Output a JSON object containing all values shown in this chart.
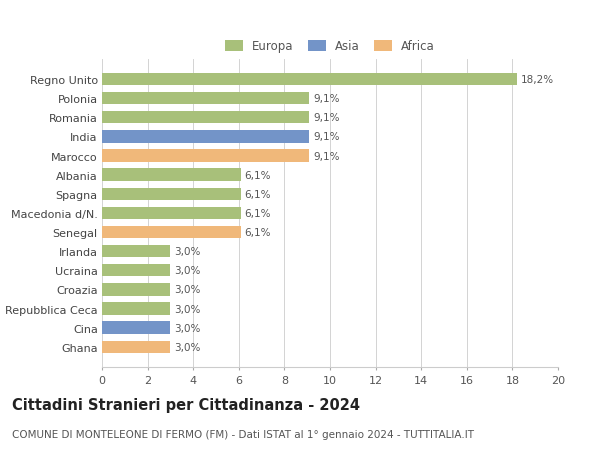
{
  "categories": [
    "Ghana",
    "Cina",
    "Repubblica Ceca",
    "Croazia",
    "Ucraina",
    "Irlanda",
    "Senegal",
    "Macedonia d/N.",
    "Spagna",
    "Albania",
    "Marocco",
    "India",
    "Romania",
    "Polonia",
    "Regno Unito"
  ],
  "values": [
    3.0,
    3.0,
    3.0,
    3.0,
    3.0,
    3.0,
    6.1,
    6.1,
    6.1,
    6.1,
    9.1,
    9.1,
    9.1,
    9.1,
    18.2
  ],
  "continents": [
    "Africa",
    "Asia",
    "Europa",
    "Europa",
    "Europa",
    "Europa",
    "Africa",
    "Europa",
    "Europa",
    "Europa",
    "Africa",
    "Asia",
    "Europa",
    "Europa",
    "Europa"
  ],
  "labels": [
    "3,0%",
    "3,0%",
    "3,0%",
    "3,0%",
    "3,0%",
    "3,0%",
    "6,1%",
    "6,1%",
    "6,1%",
    "6,1%",
    "9,1%",
    "9,1%",
    "9,1%",
    "9,1%",
    "18,2%"
  ],
  "colors": {
    "Europa": "#a8c07a",
    "Asia": "#7394c8",
    "Africa": "#f0b87a"
  },
  "legend_labels": [
    "Europa",
    "Asia",
    "Africa"
  ],
  "title": "Cittadini Stranieri per Cittadinanza - 2024",
  "subtitle": "COMUNE DI MONTELEONE DI FERMO (FM) - Dati ISTAT al 1° gennaio 2024 - TUTTITALIA.IT",
  "xlim": [
    0,
    20
  ],
  "xticks": [
    0,
    2,
    4,
    6,
    8,
    10,
    12,
    14,
    16,
    18,
    20
  ],
  "bg_color": "#ffffff",
  "grid_color": "#cccccc",
  "bar_height": 0.65,
  "title_fontsize": 10.5,
  "subtitle_fontsize": 7.5,
  "tick_fontsize": 8,
  "label_fontsize": 7.5
}
